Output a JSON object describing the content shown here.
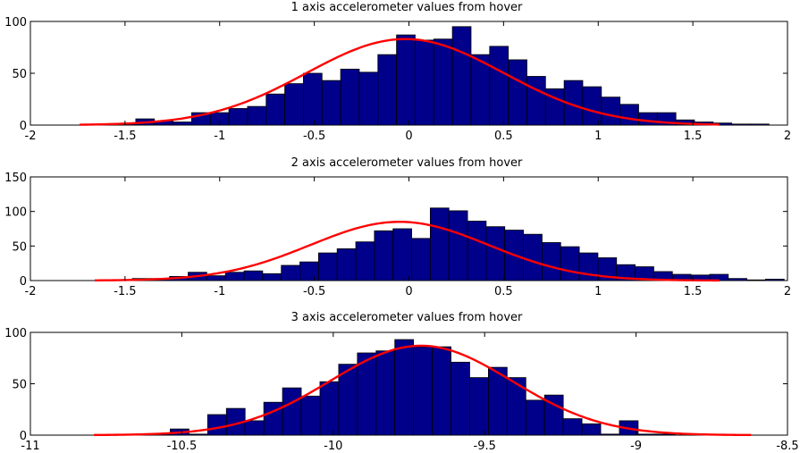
{
  "colors": {
    "bar_fill": "#00008B",
    "bar_edge": "#000000",
    "curve": "#FF0000",
    "axes": "#000000"
  },
  "chart_data": [
    {
      "type": "bar",
      "title": "1 axis accelerometer values from hover",
      "xlim": [
        -2,
        2
      ],
      "ylim": [
        0,
        100
      ],
      "xticks": [
        -2,
        -1.5,
        -1,
        -0.5,
        0,
        0.5,
        1,
        1.5,
        2
      ],
      "yticks": [
        0,
        50,
        100
      ],
      "bin_start": -1.64,
      "bin_width": 0.0984,
      "values": [
        1,
        1,
        6,
        4,
        3,
        12,
        12,
        16,
        18,
        30,
        40,
        50,
        43,
        54,
        51,
        68,
        87,
        82,
        83,
        95,
        68,
        76,
        63,
        47,
        35,
        43,
        37,
        27,
        20,
        12,
        12,
        5,
        3,
        2,
        1,
        1
      ],
      "curve": {
        "type": "normal-fit",
        "mean": -0.02,
        "sd": 0.52,
        "peak": 83,
        "x_range": [
          -1.74,
          1.64
        ]
      }
    },
    {
      "type": "bar",
      "title": "2 axis accelerometer values from hover",
      "xlim": [
        -2,
        2
      ],
      "ylim": [
        0,
        150
      ],
      "xticks": [
        -2,
        -1.5,
        -1,
        -0.5,
        0,
        0.5,
        1,
        1.5,
        2
      ],
      "yticks": [
        0,
        50,
        100,
        150
      ],
      "bin_start": -1.56,
      "bin_width": 0.0984,
      "values": [
        1,
        3,
        3,
        6,
        12,
        7,
        12,
        14,
        10,
        22,
        27,
        40,
        46,
        56,
        72,
        75,
        61,
        105,
        101,
        86,
        78,
        73,
        67,
        55,
        49,
        40,
        33,
        23,
        20,
        13,
        9,
        8,
        9,
        3,
        1,
        2
      ],
      "curve": {
        "type": "normal-fit",
        "mean": -0.05,
        "sd": 0.47,
        "peak": 85,
        "x_range": [
          -1.66,
          1.64
        ]
      }
    },
    {
      "type": "bar",
      "title": "3 axis accelerometer values from hover",
      "xlim": [
        -11,
        -8.5
      ],
      "ylim": [
        0,
        100
      ],
      "xticks": [
        -11,
        -10.5,
        -10,
        -9.5,
        -9,
        -8.5
      ],
      "yticks": [
        0,
        50,
        100
      ],
      "bin_start": -10.6,
      "bin_width": 0.0618,
      "values": [
        1,
        6,
        1,
        20,
        26,
        14,
        32,
        46,
        38,
        52,
        69,
        80,
        82,
        93,
        86,
        86,
        71,
        56,
        66,
        56,
        34,
        39,
        16,
        11,
        1,
        14,
        1,
        1
      ],
      "curve": {
        "type": "normal-fit",
        "mean": -9.71,
        "sd": 0.3,
        "peak": 87,
        "x_range": [
          -10.79,
          -8.62
        ]
      }
    }
  ]
}
